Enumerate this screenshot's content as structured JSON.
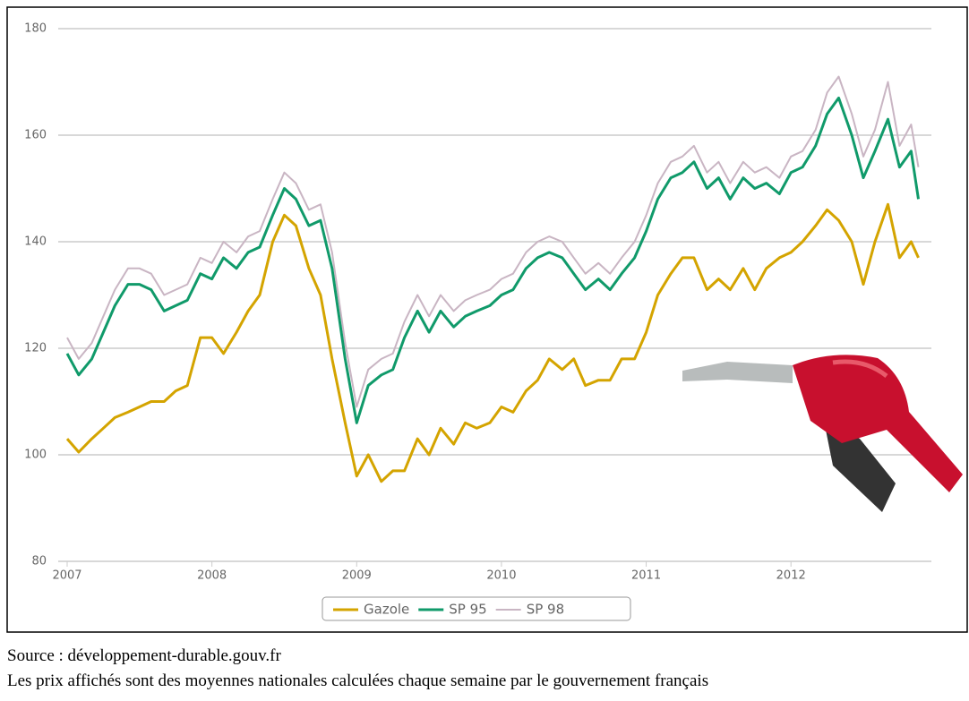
{
  "chart_data": {
    "type": "line",
    "x": [
      2007.0,
      2007.08,
      2007.17,
      2007.25,
      2007.33,
      2007.42,
      2007.5,
      2007.58,
      2007.67,
      2007.75,
      2007.83,
      2007.92,
      2008.0,
      2008.08,
      2008.17,
      2008.25,
      2008.33,
      2008.42,
      2008.5,
      2008.58,
      2008.67,
      2008.75,
      2008.83,
      2008.92,
      2009.0,
      2009.08,
      2009.17,
      2009.25,
      2009.33,
      2009.42,
      2009.5,
      2009.58,
      2009.67,
      2009.75,
      2009.83,
      2009.92,
      2010.0,
      2010.08,
      2010.17,
      2010.25,
      2010.33,
      2010.42,
      2010.5,
      2010.58,
      2010.67,
      2010.75,
      2010.83,
      2010.92,
      2011.0,
      2011.08,
      2011.17,
      2011.25,
      2011.33,
      2011.42,
      2011.5,
      2011.58,
      2011.67,
      2011.75,
      2011.83,
      2011.92,
      2012.0,
      2012.08,
      2012.17,
      2012.25,
      2012.33,
      2012.42,
      2012.5,
      2012.58,
      2012.67,
      2012.75,
      2012.83,
      2012.88
    ],
    "series": [
      {
        "name": "Gazole",
        "color": "#d4a400",
        "values": [
          103,
          100.5,
          103,
          105,
          107,
          108,
          109,
          110,
          110,
          112,
          113,
          122,
          122,
          119,
          123,
          127,
          130,
          140,
          145,
          143,
          135,
          130,
          118,
          106,
          96,
          100,
          95,
          97,
          97,
          103,
          100,
          105,
          102,
          106,
          105,
          106,
          109,
          108,
          112,
          114,
          118,
          116,
          118,
          113,
          114,
          114,
          118,
          118,
          123,
          130,
          134,
          137,
          137,
          131,
          133,
          131,
          135,
          131,
          135,
          137,
          138,
          140,
          143,
          146,
          144,
          140,
          132,
          140,
          147,
          137,
          140,
          137
        ]
      },
      {
        "name": "SP 95",
        "color": "#109a6a",
        "values": [
          119,
          115,
          118,
          123,
          128,
          132,
          132,
          131,
          127,
          128,
          129,
          134,
          133,
          137,
          135,
          138,
          139,
          145,
          150,
          148,
          143,
          144,
          135,
          118,
          106,
          113,
          115,
          116,
          122,
          127,
          123,
          127,
          124,
          126,
          127,
          128,
          130,
          131,
          135,
          137,
          138,
          137,
          134,
          131,
          133,
          131,
          134,
          137,
          142,
          148,
          152,
          153,
          155,
          150,
          152,
          148,
          152,
          150,
          151,
          149,
          153,
          154,
          158,
          164,
          167,
          160,
          152,
          157,
          163,
          154,
          157,
          148
        ]
      },
      {
        "name": "SP 98",
        "color": "#c9b5c3",
        "values": [
          122,
          118,
          121,
          126,
          131,
          135,
          135,
          134,
          130,
          131,
          132,
          137,
          136,
          140,
          138,
          141,
          142,
          148,
          153,
          151,
          146,
          147,
          138,
          121,
          109,
          116,
          118,
          119,
          125,
          130,
          126,
          130,
          127,
          129,
          130,
          131,
          133,
          134,
          138,
          140,
          141,
          140,
          137,
          134,
          136,
          134,
          137,
          140,
          145,
          151,
          155,
          156,
          158,
          153,
          155,
          151,
          155,
          153,
          154,
          152,
          156,
          157,
          161,
          168,
          171,
          164,
          156,
          161,
          170,
          158,
          162,
          154
        ]
      }
    ],
    "xlim": [
      2007,
      2012.97
    ],
    "xticks": [
      2007,
      2008,
      2009,
      2010,
      2011,
      2012
    ],
    "ylim": [
      80,
      180
    ],
    "yticks": [
      80,
      100,
      120,
      140,
      160,
      180
    ],
    "grid": true,
    "legend": "bottom"
  },
  "footer": {
    "source": "Source : développement-durable.gouv.fr",
    "note": "Les prix affichés sont des moyennes nationales calculées chaque semaine par le gouvernement français"
  }
}
